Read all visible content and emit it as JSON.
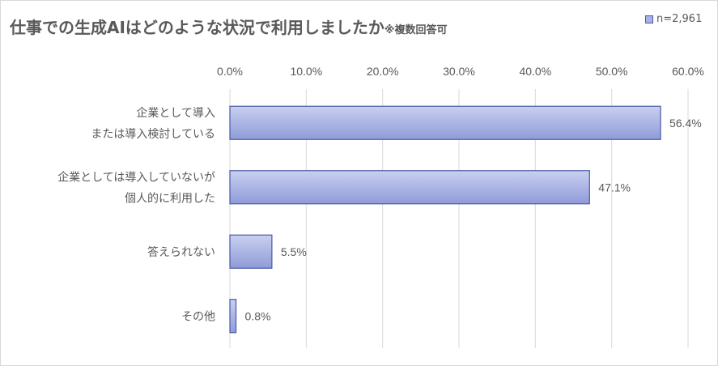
{
  "chart_data": {
    "type": "bar",
    "orientation": "horizontal",
    "title": "仕事での生成AIはどのような状況で利用しましたか",
    "title_note": "※複数回答可",
    "legend": {
      "label": "n=2,961",
      "placement": "top-right"
    },
    "categories": [
      [
        "企業として導入",
        "または導入検討している"
      ],
      [
        "企業としては導入していないが",
        "個人的に利用した"
      ],
      [
        "答えられない"
      ],
      [
        "その他"
      ]
    ],
    "values": [
      56.4,
      47.1,
      5.5,
      0.8
    ],
    "value_labels": [
      "56.4%",
      "47.1%",
      "5.5%",
      "0.8%"
    ],
    "xlim": [
      0,
      60
    ],
    "xticks": [
      "0.0%",
      "10.0%",
      "20.0%",
      "30.0%",
      "40.0%",
      "50.0%",
      "60.0%"
    ],
    "grid": true,
    "colors": {
      "bar_top": "#c9d0f0",
      "bar_bottom": "#8f9bd8",
      "bar_border": "#4a5aa8",
      "grid": "#d9d9d9",
      "text": "#595959"
    }
  }
}
